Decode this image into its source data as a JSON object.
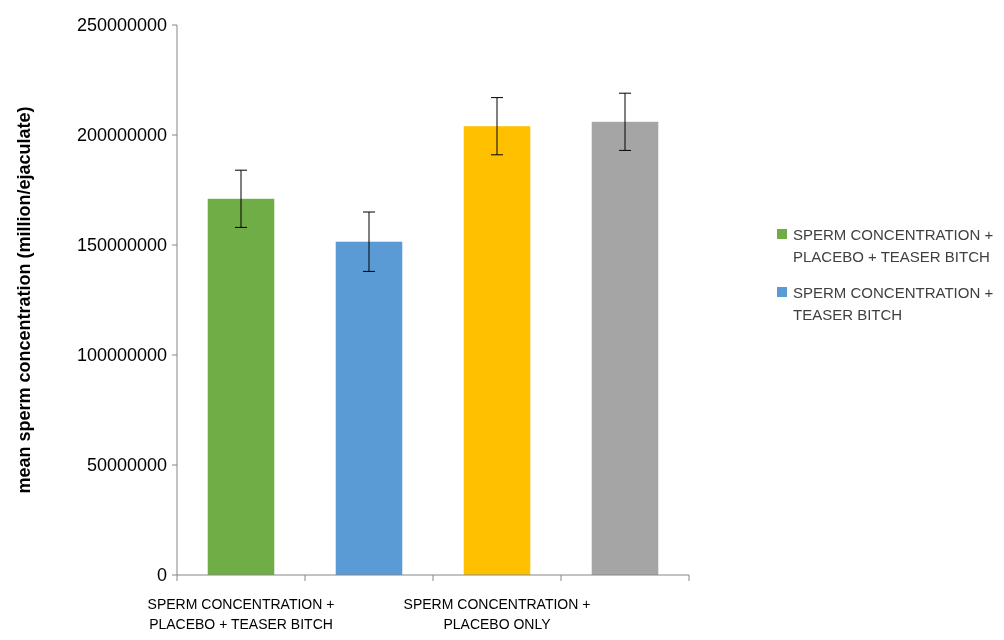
{
  "chart_data": {
    "type": "bar",
    "ylabel": "mean sperm concentration (million/ejaculate)",
    "categories": [
      "SPERM CONCENTRATION + PLACEBO + TEASER BITCH",
      null,
      "SPERM CONCENTRATION + PLACEBO ONLY",
      null
    ],
    "series": [
      {
        "name": "SPERM CONCENTRATION + PLACEBO + TEASER BITCH",
        "color": "#70ad47",
        "values": [
          171000000,
          null,
          null,
          null
        ],
        "errors": [
          13000000,
          null,
          null,
          null
        ]
      },
      {
        "name": "SPERM CONCENTRATION + TEASER BITCH",
        "color": "#5b9bd5",
        "values": [
          null,
          151500000,
          null,
          null
        ],
        "errors": [
          null,
          13500000,
          null,
          null
        ]
      },
      {
        "color": "#ffc000",
        "values": [
          null,
          null,
          204000000,
          null
        ],
        "errors": [
          null,
          null,
          13000000,
          null
        ]
      },
      {
        "color": "#a5a5a5",
        "values": [
          null,
          null,
          null,
          206000000
        ],
        "errors": [
          null,
          null,
          null,
          13000000
        ]
      }
    ],
    "ylim": [
      0,
      250000000
    ],
    "yticks": [
      0,
      50000000,
      100000000,
      150000000,
      200000000,
      250000000
    ],
    "grid": false,
    "legend": "right"
  }
}
